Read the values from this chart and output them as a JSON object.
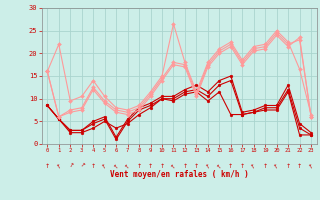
{
  "xlabel": "Vent moyen/en rafales ( km/h )",
  "bg_color": "#cceee8",
  "grid_color": "#aad4ce",
  "xlim": [
    -0.5,
    23.5
  ],
  "ylim": [
    0,
    30
  ],
  "yticks": [
    0,
    5,
    10,
    15,
    20,
    25,
    30
  ],
  "xticks": [
    0,
    1,
    2,
    3,
    4,
    5,
    6,
    7,
    8,
    9,
    10,
    11,
    12,
    13,
    14,
    15,
    16,
    17,
    18,
    19,
    20,
    21,
    22,
    23
  ],
  "series": [
    {
      "x": [
        0,
        1,
        2,
        3,
        4,
        5,
        6,
        7,
        8,
        9,
        10,
        11,
        12,
        13,
        14,
        15,
        16,
        17,
        18,
        19,
        20,
        21,
        22,
        23
      ],
      "y": [
        8.5,
        5.5,
        2.5,
        2.5,
        3.5,
        5.0,
        3.5,
        4.5,
        6.5,
        8.0,
        10.0,
        9.5,
        11.0,
        11.5,
        9.5,
        11.5,
        6.5,
        6.5,
        7.0,
        7.5,
        7.5,
        11.5,
        2.0,
        2.0
      ],
      "color": "#cc0000",
      "lw": 0.8,
      "marker": "o",
      "ms": 2.0
    },
    {
      "x": [
        0,
        1,
        2,
        3,
        4,
        5,
        6,
        7,
        8,
        9,
        10,
        11,
        12,
        13,
        14,
        15,
        16,
        17,
        18,
        19,
        20,
        21,
        22,
        23
      ],
      "y": [
        8.5,
        5.5,
        3.0,
        3.0,
        4.5,
        5.5,
        1.0,
        5.0,
        7.5,
        8.5,
        10.0,
        10.0,
        11.5,
        12.0,
        10.5,
        13.0,
        14.0,
        6.5,
        7.0,
        8.0,
        8.0,
        12.0,
        3.5,
        2.0
      ],
      "color": "#cc0000",
      "lw": 0.8,
      "marker": "o",
      "ms": 2.0
    },
    {
      "x": [
        0,
        1,
        2,
        3,
        4,
        5,
        6,
        7,
        8,
        9,
        10,
        11,
        12,
        13,
        14,
        15,
        16,
        17,
        18,
        19,
        20,
        21,
        22,
        23
      ],
      "y": [
        8.5,
        5.5,
        3.0,
        3.0,
        5.0,
        6.0,
        1.5,
        5.5,
        8.0,
        9.0,
        10.5,
        10.5,
        12.0,
        13.0,
        11.5,
        14.0,
        15.0,
        7.0,
        7.5,
        8.5,
        8.5,
        13.0,
        4.5,
        2.5
      ],
      "color": "#cc0000",
      "lw": 0.8,
      "marker": "o",
      "ms": 2.0
    },
    {
      "x": [
        0,
        1,
        2,
        3,
        4,
        5,
        6,
        7,
        8,
        9,
        10,
        11,
        12,
        13,
        14,
        15,
        16,
        17,
        18,
        19,
        20,
        21,
        22,
        23
      ],
      "y": [
        16.0,
        22.0,
        9.5,
        10.5,
        14.0,
        10.5,
        8.0,
        7.5,
        8.5,
        11.5,
        15.0,
        26.5,
        18.0,
        11.5,
        18.0,
        21.0,
        22.5,
        18.5,
        21.5,
        22.0,
        25.0,
        22.5,
        16.5,
        6.5
      ],
      "color": "#ff9999",
      "lw": 0.8,
      "marker": "D",
      "ms": 2.0
    },
    {
      "x": [
        0,
        1,
        2,
        3,
        4,
        5,
        6,
        7,
        8,
        9,
        10,
        11,
        12,
        13,
        14,
        15,
        16,
        17,
        18,
        19,
        20,
        21,
        22,
        23
      ],
      "y": [
        16.0,
        6.0,
        7.5,
        8.0,
        12.5,
        9.5,
        7.5,
        7.0,
        8.0,
        11.0,
        14.5,
        18.0,
        17.5,
        11.0,
        17.5,
        20.5,
        22.0,
        18.0,
        21.0,
        21.5,
        24.5,
        22.0,
        23.0,
        6.0
      ],
      "color": "#ff9999",
      "lw": 0.8,
      "marker": "D",
      "ms": 2.0
    },
    {
      "x": [
        0,
        1,
        2,
        3,
        4,
        5,
        6,
        7,
        8,
        9,
        10,
        11,
        12,
        13,
        14,
        15,
        16,
        17,
        18,
        19,
        20,
        21,
        22,
        23
      ],
      "y": [
        16.0,
        6.0,
        7.0,
        7.5,
        12.0,
        9.0,
        7.0,
        6.5,
        7.5,
        10.5,
        14.0,
        17.5,
        17.0,
        10.5,
        17.0,
        20.0,
        21.5,
        17.5,
        20.5,
        21.0,
        24.0,
        21.5,
        23.5,
        6.0
      ],
      "color": "#ff9999",
      "lw": 0.8,
      "marker": "D",
      "ms": 2.0
    }
  ],
  "arrow_angles": [
    90,
    60,
    120,
    135,
    90,
    60,
    45,
    45,
    90,
    90,
    90,
    45,
    90,
    90,
    60,
    45,
    90,
    90,
    60,
    90,
    60,
    90,
    90,
    60
  ],
  "arrow_color": "#cc0000"
}
